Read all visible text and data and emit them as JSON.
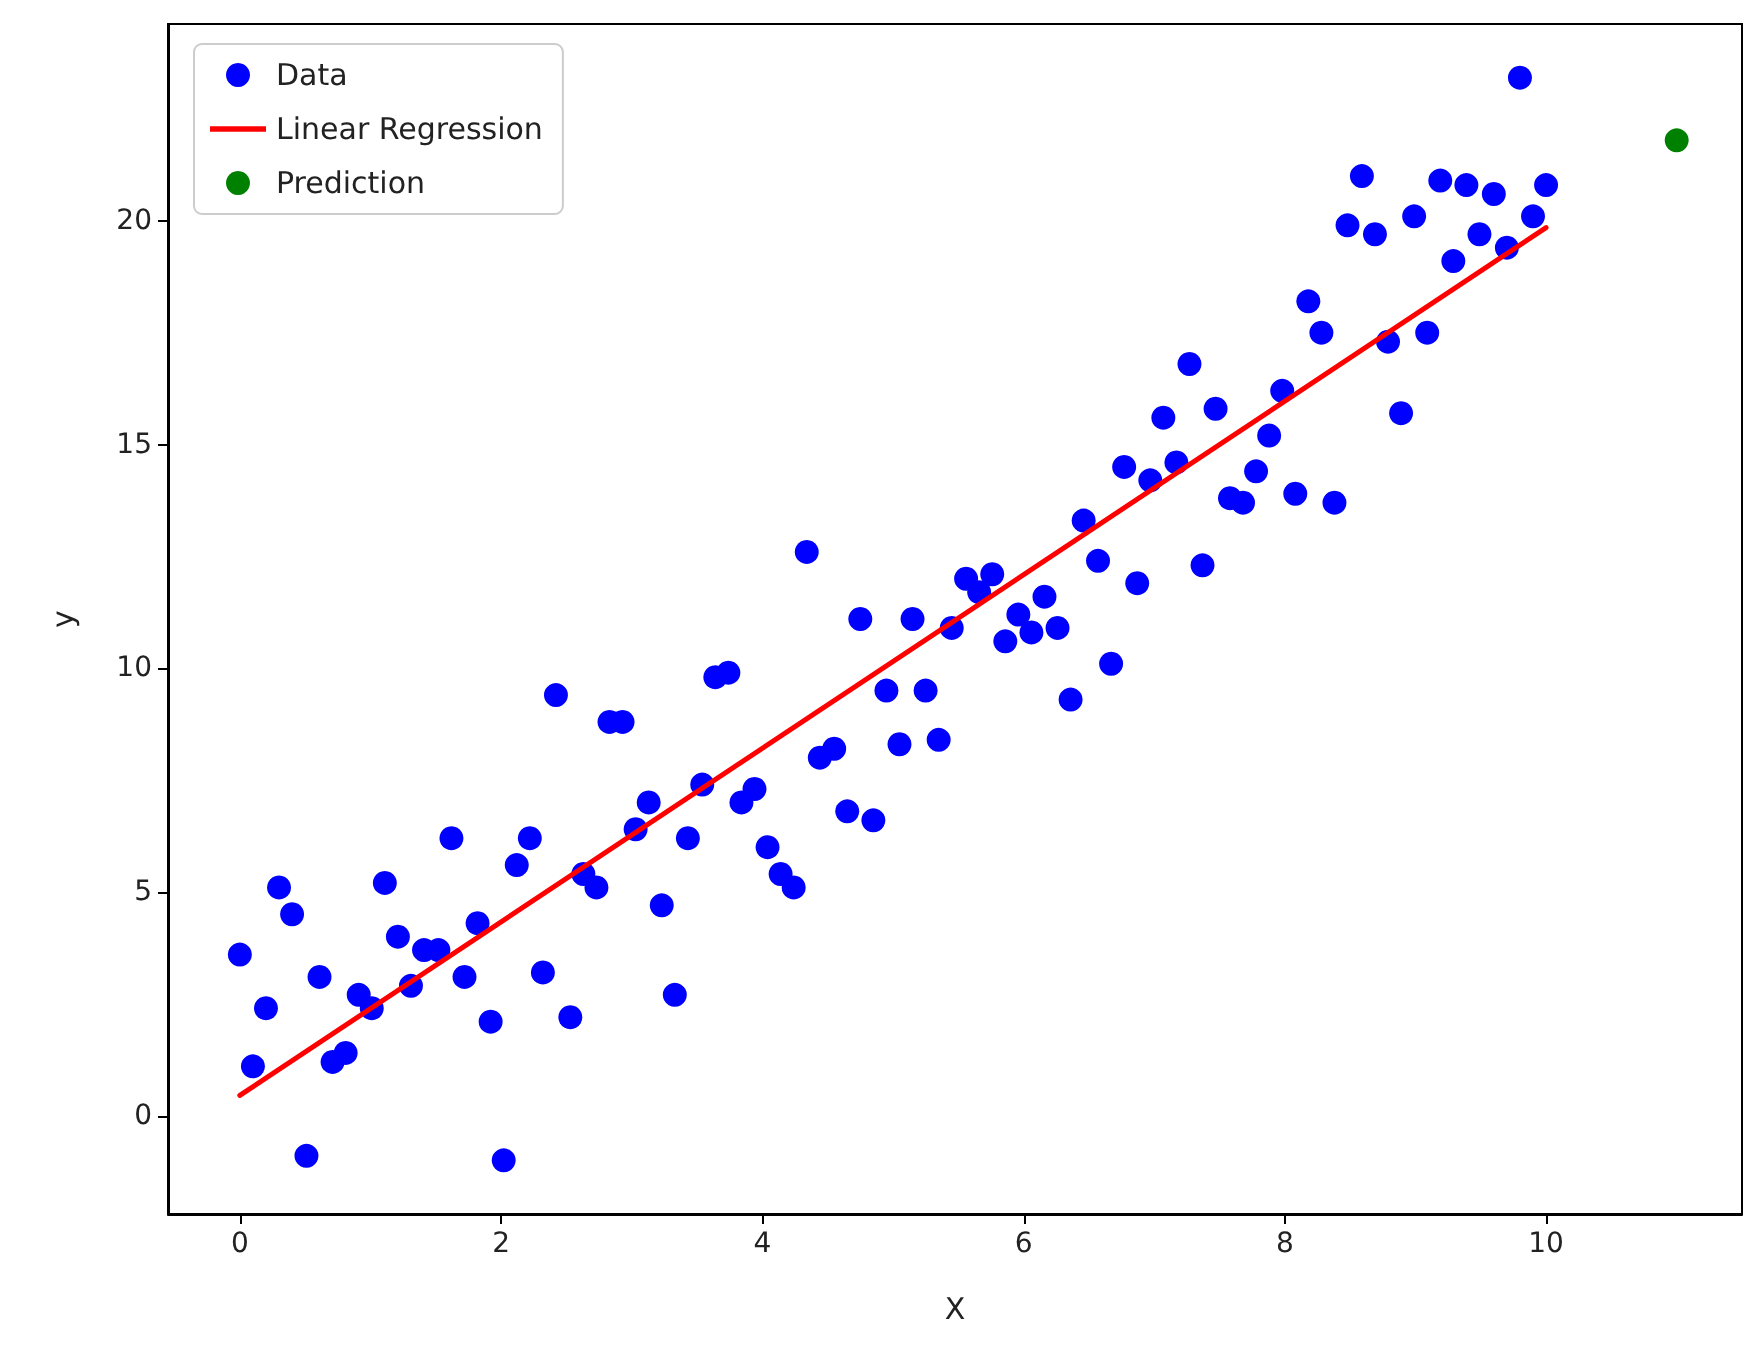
{
  "chart_data": {
    "type": "scatter",
    "xlabel": "X",
    "ylabel": "y",
    "xlim": [
      -0.55,
      11.5
    ],
    "ylim": [
      -2.2,
      24.4
    ],
    "xticks": [
      0,
      2,
      4,
      6,
      8,
      10
    ],
    "yticks": [
      0,
      5,
      10,
      15,
      20
    ],
    "grid": false,
    "legend": "top left",
    "marker": "circle",
    "series": [
      {
        "name": "Data",
        "color": "#0000ff",
        "x": [
          0,
          0.1,
          0.2,
          0.3,
          0.4,
          0.51,
          0.61,
          0.71,
          0.81,
          0.91,
          1.01,
          1.11,
          1.21,
          1.31,
          1.41,
          1.52,
          1.62,
          1.72,
          1.82,
          1.92,
          2.02,
          2.12,
          2.22,
          2.32,
          2.42,
          2.53,
          2.63,
          2.73,
          2.83,
          2.93,
          3.03,
          3.13,
          3.23,
          3.33,
          3.43,
          3.54,
          3.64,
          3.74,
          3.84,
          3.94,
          4.04,
          4.14,
          4.24,
          4.34,
          4.44,
          4.55,
          4.65,
          4.75,
          4.85,
          4.95,
          5.05,
          5.15,
          5.25,
          5.35,
          5.45,
          5.56,
          5.66,
          5.76,
          5.86,
          5.96,
          6.06,
          6.16,
          6.26,
          6.36,
          6.46,
          6.57,
          6.67,
          6.77,
          6.87,
          6.97,
          7.07,
          7.17,
          7.27,
          7.37,
          7.47,
          7.58,
          7.68,
          7.78,
          7.88,
          7.98,
          8.08,
          8.18,
          8.28,
          8.38,
          8.48,
          8.59,
          8.69,
          8.79,
          8.89,
          8.99,
          9.09,
          9.19,
          9.29,
          9.39,
          9.49,
          9.6,
          9.7,
          9.8,
          9.9,
          10
        ],
        "values": [
          3.6,
          1.1,
          2.4,
          5.1,
          4.5,
          -0.9,
          3.1,
          1.2,
          1.4,
          2.7,
          2.4,
          5.2,
          4.0,
          2.9,
          3.7,
          3.7,
          6.2,
          3.1,
          4.3,
          2.1,
          -1.0,
          5.6,
          6.2,
          3.2,
          9.4,
          2.2,
          5.4,
          5.1,
          8.8,
          8.8,
          6.4,
          7.0,
          4.7,
          2.7,
          6.2,
          7.4,
          9.8,
          9.9,
          7.0,
          7.3,
          6.0,
          5.4,
          5.1,
          12.6,
          8.0,
          8.2,
          6.8,
          11.1,
          6.6,
          9.5,
          8.3,
          11.1,
          9.5,
          8.4,
          10.9,
          12.0,
          11.7,
          12.1,
          10.6,
          11.2,
          10.8,
          11.6,
          10.9,
          9.3,
          13.3,
          12.4,
          10.1,
          14.5,
          11.9,
          14.2,
          15.6,
          14.6,
          16.8,
          12.3,
          15.8,
          13.8,
          13.7,
          14.4,
          15.2,
          16.2,
          13.9,
          18.2,
          17.5,
          13.7,
          19.9,
          21.0,
          19.7,
          17.3,
          15.7,
          20.1,
          17.5,
          20.9,
          19.1,
          20.8,
          19.7,
          20.6,
          19.4,
          23.2,
          20.1,
          20.8
        ]
      },
      {
        "name": "Linear Regression",
        "type": "line",
        "color": "#ff0000",
        "marker": "none",
        "line_style": "solid",
        "x": [
          0,
          10
        ],
        "values": [
          0.45,
          19.85
        ]
      },
      {
        "name": "Prediction",
        "color": "#008000",
        "x": [
          11
        ],
        "values": [
          21.8
        ]
      }
    ]
  }
}
